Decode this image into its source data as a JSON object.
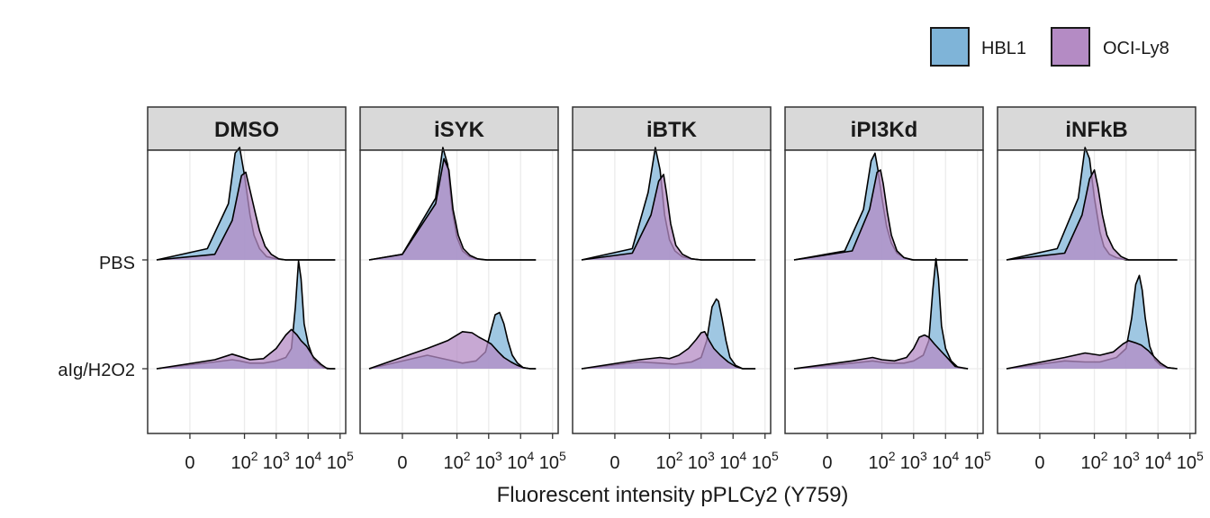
{
  "chart_data": {
    "type": "ridgeline-density",
    "xlabel": "Fluorescent intensity pPLCy2 (Y759)",
    "x_scale": "pseudo-log",
    "x_ticks": [
      {
        "value": 0,
        "base": "0",
        "exp": ""
      },
      {
        "value": 100,
        "base": "10",
        "exp": "2"
      },
      {
        "value": 1000,
        "base": "10",
        "exp": "3"
      },
      {
        "value": 10000,
        "base": "10",
        "exp": "4"
      },
      {
        "value": 100000,
        "base": "10",
        "exp": "5"
      }
    ],
    "xlim": [
      -40,
      150000
    ],
    "groups": [
      "PBS",
      "aIg/H2O2"
    ],
    "legend": {
      "position": "top-right",
      "entries": [
        "HBL1",
        "OCI-Ly8"
      ]
    },
    "colors": {
      "HBL1": "#7fb4d8",
      "OCI-Ly8": "#b48bc4",
      "strip_bg": "#d9d9d9",
      "grid": "#ebebeb"
    },
    "panels": [
      {
        "label": "DMSO",
        "series": [
          {
            "name": "HBL1",
            "group": "PBS",
            "x": [
              -20,
              5,
              30,
              50,
              70,
              100,
              150,
              200,
              300,
              500,
              1000,
              2000,
              70000
            ],
            "y": [
              0,
              0.1,
              0.5,
              0.95,
              1.0,
              0.75,
              0.4,
              0.22,
              0.1,
              0.03,
              0.01,
              0,
              0
            ]
          },
          {
            "name": "OCI-Ly8",
            "group": "PBS",
            "x": [
              -20,
              10,
              40,
              80,
              110,
              150,
              220,
              300,
              450,
              700,
              1200,
              2000,
              70000
            ],
            "y": [
              0,
              0.05,
              0.35,
              0.75,
              0.78,
              0.62,
              0.42,
              0.26,
              0.12,
              0.05,
              0.01,
              0,
              0
            ]
          },
          {
            "name": "HBL1",
            "group": "aIg/H2O2",
            "x": [
              -20,
              10,
              40,
              70,
              150,
              400,
              1000,
              2000,
              3000,
              4000,
              5000,
              6000,
              7500,
              10000,
              15000,
              20000,
              30000,
              50000,
              70000
            ],
            "y": [
              0,
              0.06,
              0.08,
              0.07,
              0.05,
              0.05,
              0.07,
              0.1,
              0.18,
              0.55,
              0.96,
              0.8,
              0.4,
              0.22,
              0.08,
              0.05,
              0.01,
              0,
              0
            ]
          },
          {
            "name": "OCI-Ly8",
            "group": "aIg/H2O2",
            "x": [
              -20,
              10,
              40,
              70,
              150,
              400,
              1000,
              2000,
              3000,
              4500,
              6000,
              9000,
              15000,
              25000,
              40000,
              70000
            ],
            "y": [
              0,
              0.08,
              0.13,
              0.11,
              0.08,
              0.09,
              0.18,
              0.3,
              0.35,
              0.3,
              0.25,
              0.2,
              0.1,
              0.04,
              0,
              0
            ]
          }
        ]
      },
      {
        "label": "iSYK",
        "series": [
          {
            "name": "HBL1",
            "group": "PBS",
            "x": [
              -20,
              0,
              20,
              35,
              50,
              70,
              100,
              150,
              250,
              400,
              800,
              30000
            ],
            "y": [
              0,
              0.05,
              0.55,
              1.0,
              0.85,
              0.45,
              0.2,
              0.08,
              0.03,
              0.01,
              0,
              0
            ]
          },
          {
            "name": "OCI-Ly8",
            "group": "PBS",
            "x": [
              -20,
              0,
              20,
              38,
              55,
              75,
              110,
              160,
              260,
              450,
              900,
              30000
            ],
            "y": [
              0,
              0.05,
              0.5,
              0.9,
              0.8,
              0.45,
              0.22,
              0.1,
              0.04,
              0.01,
              0,
              0
            ]
          },
          {
            "name": "HBL1",
            "group": "aIg/H2O2",
            "x": [
              -20,
              10,
              50,
              150,
              400,
              800,
              1200,
              1600,
              2200,
              3000,
              4000,
              5500,
              8000,
              12000,
              20000,
              30000
            ],
            "y": [
              0,
              0.12,
              0.08,
              0.05,
              0.07,
              0.15,
              0.35,
              0.48,
              0.5,
              0.4,
              0.25,
              0.12,
              0.05,
              0.01,
              0,
              0
            ]
          },
          {
            "name": "OCI-Ly8",
            "group": "aIg/H2O2",
            "x": [
              -20,
              10,
              50,
              150,
              300,
              500,
              800,
              1200,
              2000,
              3000,
              5000,
              8000,
              12000,
              20000,
              30000
            ],
            "y": [
              0,
              0.18,
              0.25,
              0.33,
              0.32,
              0.28,
              0.25,
              0.22,
              0.15,
              0.1,
              0.06,
              0.03,
              0.01,
              0,
              0
            ]
          }
        ]
      },
      {
        "label": "iBTK",
        "series": [
          {
            "name": "HBL1",
            "group": "PBS",
            "x": [
              -20,
              5,
              20,
              35,
              50,
              70,
              100,
              150,
              250,
              500,
              1000,
              50000
            ],
            "y": [
              0,
              0.1,
              0.6,
              1.0,
              0.8,
              0.4,
              0.18,
              0.08,
              0.03,
              0.01,
              0,
              0
            ]
          },
          {
            "name": "OCI-Ly8",
            "group": "PBS",
            "x": [
              -20,
              5,
              25,
              45,
              65,
              80,
              110,
              160,
              260,
              500,
              1000,
              50000
            ],
            "y": [
              0,
              0.06,
              0.4,
              0.7,
              0.76,
              0.6,
              0.32,
              0.13,
              0.05,
              0.01,
              0,
              0
            ]
          },
          {
            "name": "HBL1",
            "group": "aIg/H2O2",
            "x": [
              -20,
              10,
              50,
              150,
              500,
              1000,
              1500,
              2200,
              3000,
              3500,
              4500,
              6000,
              8000,
              12000,
              20000,
              50000
            ],
            "y": [
              0,
              0.06,
              0.05,
              0.04,
              0.06,
              0.1,
              0.25,
              0.55,
              0.62,
              0.6,
              0.45,
              0.25,
              0.1,
              0.03,
              0,
              0
            ]
          },
          {
            "name": "OCI-Ly8",
            "group": "aIg/H2O2",
            "x": [
              -20,
              10,
              50,
              100,
              200,
              400,
              700,
              1000,
              1300,
              1800,
              2500,
              4000,
              7000,
              12000,
              20000,
              50000
            ],
            "y": [
              0,
              0.08,
              0.1,
              0.09,
              0.12,
              0.18,
              0.26,
              0.32,
              0.33,
              0.25,
              0.18,
              0.12,
              0.06,
              0.02,
              0,
              0
            ]
          }
        ]
      },
      {
        "label": "iPI3Kd",
        "series": [
          {
            "name": "HBL1",
            "group": "PBS",
            "x": [
              -20,
              5,
              25,
              45,
              60,
              75,
              100,
              140,
              200,
              300,
              500,
              1000,
              50000
            ],
            "y": [
              0,
              0.08,
              0.45,
              0.88,
              0.95,
              0.8,
              0.55,
              0.3,
              0.15,
              0.06,
              0.02,
              0,
              0
            ]
          },
          {
            "name": "OCI-Ly8",
            "group": "PBS",
            "x": [
              -20,
              10,
              40,
              70,
              90,
              110,
              150,
              200,
              300,
              500,
              900,
              50000
            ],
            "y": [
              0,
              0.08,
              0.45,
              0.78,
              0.8,
              0.68,
              0.42,
              0.22,
              0.08,
              0.02,
              0,
              0
            ]
          },
          {
            "name": "HBL1",
            "group": "aIg/H2O2",
            "x": [
              -20,
              10,
              50,
              150,
              500,
              1000,
              2000,
              3000,
              4000,
              5000,
              6000,
              7500,
              10000,
              15000,
              25000,
              50000
            ],
            "y": [
              0,
              0.05,
              0.07,
              0.05,
              0.05,
              0.07,
              0.12,
              0.25,
              0.7,
              0.98,
              0.8,
              0.38,
              0.18,
              0.07,
              0.01,
              0
            ]
          },
          {
            "name": "OCI-Ly8",
            "group": "aIg/H2O2",
            "x": [
              -20,
              10,
              50,
              100,
              250,
              600,
              1000,
              1500,
              2200,
              3000,
              4500,
              7000,
              12000,
              20000,
              50000
            ],
            "y": [
              0,
              0.07,
              0.1,
              0.08,
              0.07,
              0.1,
              0.18,
              0.28,
              0.3,
              0.28,
              0.22,
              0.16,
              0.09,
              0.02,
              0
            ]
          }
        ]
      },
      {
        "label": "iNFkB",
        "series": [
          {
            "name": "HBL1",
            "group": "PBS",
            "x": [
              -20,
              5,
              30,
              50,
              70,
              100,
              150,
              200,
              300,
              500,
              1000,
              40000
            ],
            "y": [
              0,
              0.1,
              0.55,
              1.0,
              0.9,
              0.55,
              0.25,
              0.12,
              0.05,
              0.02,
              0,
              0
            ]
          },
          {
            "name": "OCI-Ly8",
            "group": "PBS",
            "x": [
              -20,
              10,
              40,
              70,
              100,
              130,
              180,
              250,
              400,
              700,
              1200,
              40000
            ],
            "y": [
              0,
              0.06,
              0.4,
              0.72,
              0.8,
              0.65,
              0.4,
              0.22,
              0.1,
              0.03,
              0,
              0
            ]
          },
          {
            "name": "HBL1",
            "group": "aIg/H2O2",
            "x": [
              -20,
              10,
              50,
              150,
              500,
              1000,
              1500,
              2000,
              2600,
              3200,
              4000,
              5500,
              8000,
              12000,
              20000,
              40000
            ],
            "y": [
              0,
              0.07,
              0.06,
              0.06,
              0.1,
              0.18,
              0.45,
              0.75,
              0.83,
              0.7,
              0.45,
              0.2,
              0.08,
              0.03,
              0.01,
              0
            ]
          },
          {
            "name": "OCI-Ly8",
            "group": "aIg/H2O2",
            "x": [
              -20,
              10,
              50,
              150,
              400,
              800,
              1200,
              2000,
              3000,
              5000,
              8000,
              12000,
              20000,
              40000
            ],
            "y": [
              0,
              0.1,
              0.14,
              0.12,
              0.15,
              0.22,
              0.25,
              0.23,
              0.21,
              0.16,
              0.1,
              0.05,
              0.01,
              0
            ]
          }
        ]
      }
    ]
  }
}
